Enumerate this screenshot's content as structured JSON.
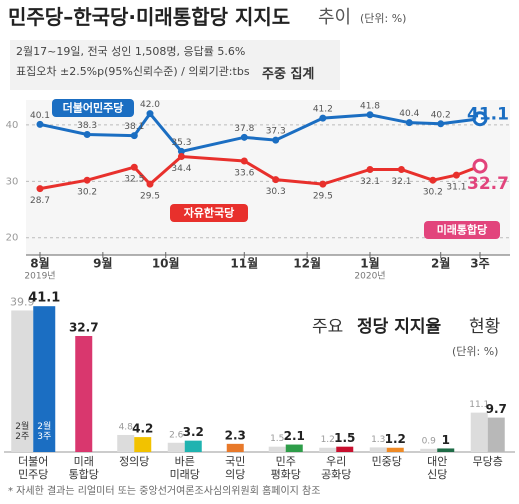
{
  "header": {
    "title": "민주당–한국당·미래통합당 지지도",
    "title_suffix": "추이",
    "unit": "(단위: %)"
  },
  "survey": [
    "2월17~19일, 전국 성인 1,508명, 응답률 5.6%",
    "표집오차 ±2.5%p(95%신뢰수준) / 의뢰기관:tbs"
  ],
  "period": "주중 집계",
  "chart_data": [
    {
      "type": "line",
      "xlim": [
        0,
        28
      ],
      "xticks": [
        {
          "value": 0,
          "label": "8월"
        },
        {
          "value": 4,
          "label": "9월"
        },
        {
          "value": 8,
          "label": "10월"
        },
        {
          "value": 13,
          "label": "11월"
        },
        {
          "value": 17,
          "label": "12월"
        },
        {
          "value": 21,
          "label": "1월"
        },
        {
          "value": 25.5,
          "label": "2월"
        },
        {
          "value": 28,
          "label": "3주"
        }
      ],
      "year_labels": [
        {
          "value": 0,
          "label": "2019년"
        },
        {
          "value": 21,
          "label": "2020년"
        }
      ],
      "ylim": [
        18,
        43
      ],
      "yticks": [
        20,
        30,
        40
      ],
      "grid": true,
      "series": [
        {
          "name": "더불어민주당",
          "color": "#1b6ec2",
          "x": [
            0,
            3,
            6,
            7,
            9,
            13,
            15,
            18,
            21,
            23.5,
            25.5,
            28
          ],
          "values": [
            40.1,
            38.3,
            38.1,
            42.0,
            35.3,
            37.8,
            37.3,
            41.2,
            41.8,
            40.4,
            40.2,
            41.1
          ],
          "value_labels": [
            "40.1",
            "38.3",
            "38.1",
            "42.0",
            "35.3",
            "37.8",
            "37.3",
            "41.2",
            "41.8",
            "40.4",
            "40.2",
            "41.1"
          ]
        },
        {
          "name": "자유한국당",
          "color": "#e8302c",
          "successor": "미래통합당",
          "successor_color": "#e2447c",
          "x": [
            0,
            3,
            6,
            7,
            9,
            13,
            15,
            18,
            21,
            23,
            25,
            26.5,
            28
          ],
          "values": [
            28.7,
            30.2,
            32.5,
            29.5,
            34.4,
            33.6,
            30.3,
            29.5,
            32.1,
            32.1,
            30.2,
            31.1,
            32.7
          ]
        }
      ]
    },
    {
      "type": "bar",
      "title_parts": [
        "주요",
        "정당 지지율",
        "현황"
      ],
      "unit": "(단위: %)",
      "categories": [
        "더불어\n민주당",
        "미래\n통합당",
        "정의당",
        "바른\n미래당",
        "국민\n의당",
        "민주\n평화당",
        "우리\n공화당",
        "민중당",
        "대안\n신당",
        "무당층"
      ],
      "ylim": [
        0,
        42
      ],
      "series": [
        {
          "name": "2월 2주",
          "color": "#dcdcdc",
          "values": [
            39.9,
            null,
            4.8,
            2.6,
            null,
            1.5,
            1.2,
            1.3,
            0.9,
            11.1
          ]
        },
        {
          "name": "2월 3주",
          "colors": [
            "#1b6ec2",
            "#d9376e",
            "#f2c200",
            "#1fb3b0",
            "#e8792a",
            "#2e9d49",
            "#c8102e",
            "#ef8a25",
            "#1e6b46",
            "#b8b8b8"
          ],
          "values": [
            41.1,
            32.7,
            4.2,
            3.2,
            2.3,
            2.1,
            1.5,
            1.2,
            1,
            9.7
          ]
        }
      ]
    }
  ],
  "footer": "* 자세한 결과는 리얼미터 또는 중앙선거여론조사심의위원회 홈페이지 참조"
}
